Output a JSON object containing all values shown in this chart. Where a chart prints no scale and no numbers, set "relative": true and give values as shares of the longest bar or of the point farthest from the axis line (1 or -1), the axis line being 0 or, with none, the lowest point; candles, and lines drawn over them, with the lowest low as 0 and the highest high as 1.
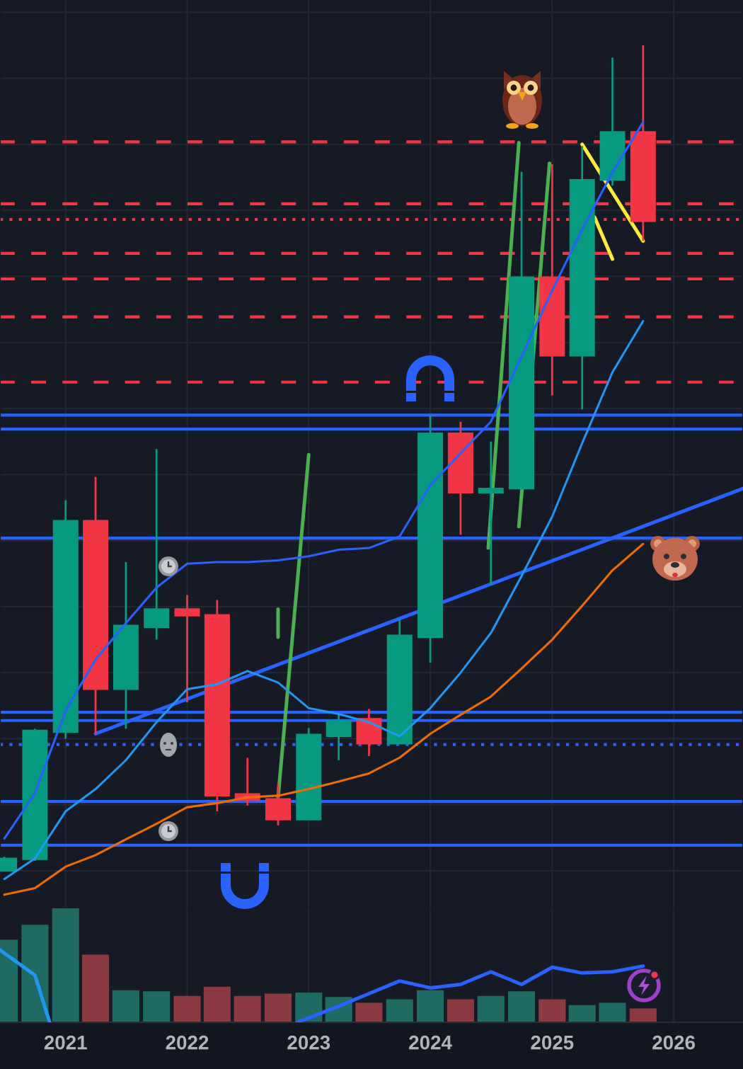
{
  "chart_data": [
    {
      "type": "candlestick",
      "relative": true,
      "x": [
        "2020-07",
        "2020-10",
        "2021-01",
        "2021-04",
        "2021-07",
        "2021-10",
        "2022-01",
        "2022-04",
        "2022-07",
        "2022-10",
        "2023-01",
        "2023-04",
        "2023-07",
        "2023-10",
        "2024-01",
        "2024-04",
        "2024-07",
        "2024-10",
        "2025-01",
        "2025-04",
        "2025-07",
        "2025-10"
      ],
      "ohlc": [
        [
          0,
          0.017,
          0,
          0.015
        ],
        [
          0.014,
          0.172,
          0.012,
          0.17
        ],
        [
          0.168,
          0.449,
          0.16,
          0.424
        ],
        [
          0.424,
          0.477,
          0.166,
          0.22
        ],
        [
          0.22,
          0.374,
          0.172,
          0.297
        ],
        [
          0.295,
          0.511,
          0.28,
          0.317
        ],
        [
          0.317,
          0.334,
          0.204,
          0.309
        ],
        [
          0.31,
          0.328,
          0.072,
          0.091
        ],
        [
          0.093,
          0.137,
          0.079,
          0.086
        ],
        [
          0.087,
          0.106,
          0.055,
          0.062
        ],
        [
          0.062,
          0.173,
          0.062,
          0.165
        ],
        [
          0.163,
          0.19,
          0.134,
          0.182
        ],
        [
          0.184,
          0.196,
          0.139,
          0.154
        ],
        [
          0.154,
          0.305,
          0.154,
          0.285
        ],
        [
          0.283,
          0.552,
          0.252,
          0.53
        ],
        [
          0.53,
          0.544,
          0.407,
          0.458
        ],
        [
          0.458,
          0.52,
          0.346,
          0.463
        ],
        [
          0.463,
          0.847,
          0.463,
          0.719
        ],
        [
          0.719,
          0.856,
          0.576,
          0.624
        ],
        [
          0.624,
          0.878,
          0.559,
          0.837
        ],
        [
          0.837,
          0.985,
          0.83,
          0.895
        ],
        [
          0.895,
          1,
          0.763,
          0.787
        ]
      ],
      "colors": [
        "#089981",
        "#089981",
        "#089981",
        "#f23645",
        "#089981",
        "#089981",
        "#f23645",
        "#f23645",
        "#f23645",
        "#f23645",
        "#089981",
        "#089981",
        "#f23645",
        "#089981",
        "#089981",
        "#f23645",
        "#089981",
        "#089981",
        "#f23645",
        "#089981",
        "#089981",
        "#f23645"
      ],
      "xlim": [
        "2020-06-18",
        "2026-07-28"
      ],
      "xticks": [
        "2021",
        "2022",
        "2023",
        "2024",
        "2025",
        "2026"
      ],
      "tick_labels": false,
      "grid": true,
      "series": [
        {
          "type": "line",
          "color": "#2962ff",
          "values": [
            0.039,
            0.094,
            0.194,
            0.256,
            0.3,
            0.343,
            0.372,
            0.374,
            0.374,
            0.376,
            0.381,
            0.389,
            0.391,
            0.405,
            0.467,
            0.506,
            0.544,
            0.623,
            0.703,
            0.777,
            0.846,
            0.907
          ]
        },
        {
          "type": "line",
          "color": "#2196f3",
          "values": [
            -0.01,
            0.015,
            0.072,
            0.099,
            0.134,
            0.18,
            0.22,
            0.226,
            0.242,
            0.228,
            0.197,
            0.19,
            0.18,
            0.163,
            0.197,
            0.24,
            0.288,
            0.357,
            0.429,
            0.518,
            0.604,
            0.666
          ]
        },
        {
          "type": "line",
          "color": "#ef6c00",
          "values": [
            -0.029,
            -0.021,
            0.005,
            0.019,
            0.038,
            0.057,
            0.077,
            0.082,
            0.089,
            0.091,
            0.099,
            0.108,
            0.118,
            0.137,
            0.166,
            0.189,
            0.211,
            0.245,
            0.28,
            0.321,
            0.364,
            0.396
          ]
        },
        {
          "type": "line",
          "color": "#2962ff",
          "x": [
            "2021-04",
            "2026-07-28"
          ],
          "values": [
            0.166,
            0.463
          ]
        },
        {
          "type": "line",
          "color": "#4caf50",
          "x": [
            "2022-10",
            "2023-01"
          ],
          "values": [
            0.089,
            0.504
          ]
        },
        {
          "type": "line",
          "color": "#4caf50",
          "x": [
            "2022-10",
            "2022-10"
          ],
          "values": [
            0.317,
            0.283
          ]
        },
        {
          "type": "line",
          "color": "#4caf50",
          "x": [
            "2024-06-23",
            "2024-09-23"
          ],
          "values": [
            0.391,
            0.882
          ]
        },
        {
          "type": "line",
          "color": "#4caf50",
          "x": [
            "2024-09-23",
            "2024-12-24"
          ],
          "values": [
            0.417,
            0.857
          ]
        },
        {
          "type": "line",
          "color": "#ffeb3b",
          "x": [
            "2025-04",
            "2025-10"
          ],
          "values": [
            0.88,
            0.763
          ]
        },
        {
          "type": "line",
          "color": "#ffeb3b",
          "x": [
            "2025-05-08",
            "2025-07"
          ],
          "values": [
            0.792,
            0.741
          ]
        }
      ],
      "ref_lines": [
        {
          "axis": "y",
          "value": 0.883,
          "color": "#f23645",
          "line_style": "dashed"
        },
        {
          "axis": "y",
          "value": 0.808,
          "color": "#f23645",
          "line_style": "dashed"
        },
        {
          "axis": "y",
          "value": 0.789,
          "color": "#f23645",
          "line_style": "dotted"
        },
        {
          "axis": "y",
          "value": 0.748,
          "color": "#f23645",
          "line_style": "dashed"
        },
        {
          "axis": "y",
          "value": 0.717,
          "color": "#f23645",
          "line_style": "dashed"
        },
        {
          "axis": "y",
          "value": 0.671,
          "color": "#f23645",
          "line_style": "dashed"
        },
        {
          "axis": "y",
          "value": 0.592,
          "color": "#f23645",
          "line_style": "dashed"
        },
        {
          "axis": "y",
          "value": 0.552,
          "color": "#2962ff",
          "line_style": "solid"
        },
        {
          "axis": "y",
          "value": 0.535,
          "color": "#2962ff",
          "line_style": "solid"
        },
        {
          "axis": "y",
          "value": 0.403,
          "color": "#2962ff",
          "line_style": "solid"
        },
        {
          "axis": "y",
          "value": 0.192,
          "color": "#2962ff",
          "line_style": "solid"
        },
        {
          "axis": "y",
          "value": 0.182,
          "color": "#2962ff",
          "line_style": "solid"
        },
        {
          "axis": "y",
          "value": 0.153,
          "color": "#2962ff",
          "line_style": "dotted"
        },
        {
          "axis": "y",
          "value": 0.084,
          "color": "#2962ff",
          "line_style": "solid"
        },
        {
          "axis": "y",
          "value": 0.031,
          "color": "#2962ff",
          "line_style": "solid"
        }
      ]
    },
    {
      "type": "bar",
      "relative": true,
      "x": [
        "2020-07",
        "2020-10",
        "2021-01",
        "2021-04",
        "2021-07",
        "2021-10",
        "2022-01",
        "2022-04",
        "2022-07",
        "2022-10",
        "2023-01",
        "2023-04",
        "2023-07",
        "2023-10",
        "2024-01",
        "2024-04",
        "2024-07",
        "2024-10",
        "2025-01",
        "2025-04",
        "2025-07",
        "2025-10"
      ],
      "xlim": [
        "2020-06-18",
        "2026-07-28"
      ],
      "xticks": [
        "2021",
        "2022",
        "2023",
        "2024",
        "2025",
        "2026"
      ],
      "grid": "x",
      "series": [
        {
          "type": "bar",
          "colors": [
            "#1f6b63",
            "#1f6b63",
            "#1f6b63",
            "#8a3a40",
            "#1f6b63",
            "#1f6b63",
            "#8a3a40",
            "#8a3a40",
            "#8a3a40",
            "#8a3a40",
            "#1f6b63",
            "#1f6b63",
            "#8a3a40",
            "#1f6b63",
            "#1f6b63",
            "#8a3a40",
            "#1f6b63",
            "#1f6b63",
            "#8a3a40",
            "#1f6b63",
            "#1f6b63",
            "#8a3a40"
          ],
          "values": [
            0.72,
            0.85,
            1,
            0.59,
            0.28,
            0.27,
            0.23,
            0.31,
            0.23,
            0.25,
            0.26,
            0.22,
            0.17,
            0.2,
            0.28,
            0.2,
            0.23,
            0.27,
            0.2,
            0.15,
            0.17,
            0.12
          ]
        },
        {
          "type": "line",
          "color": "#2196f3",
          "x": [
            "2020-06-18",
            "2020-10",
            "2020-11-14"
          ],
          "values": [
            0.63,
            0.41,
            0
          ]
        },
        {
          "type": "line",
          "color": "#2962ff",
          "x": [
            "2022-11-28",
            "2023-04",
            "2023-07",
            "2023-10",
            "2024-01",
            "2024-04",
            "2024-07",
            "2024-10",
            "2025-01",
            "2025-04",
            "2025-07",
            "2025-10"
          ],
          "values": [
            0,
            0.14,
            0.25,
            0.36,
            0.3,
            0.33,
            0.44,
            0.33,
            0.48,
            0.43,
            0.44,
            0.49
          ]
        }
      ]
    }
  ]
}
